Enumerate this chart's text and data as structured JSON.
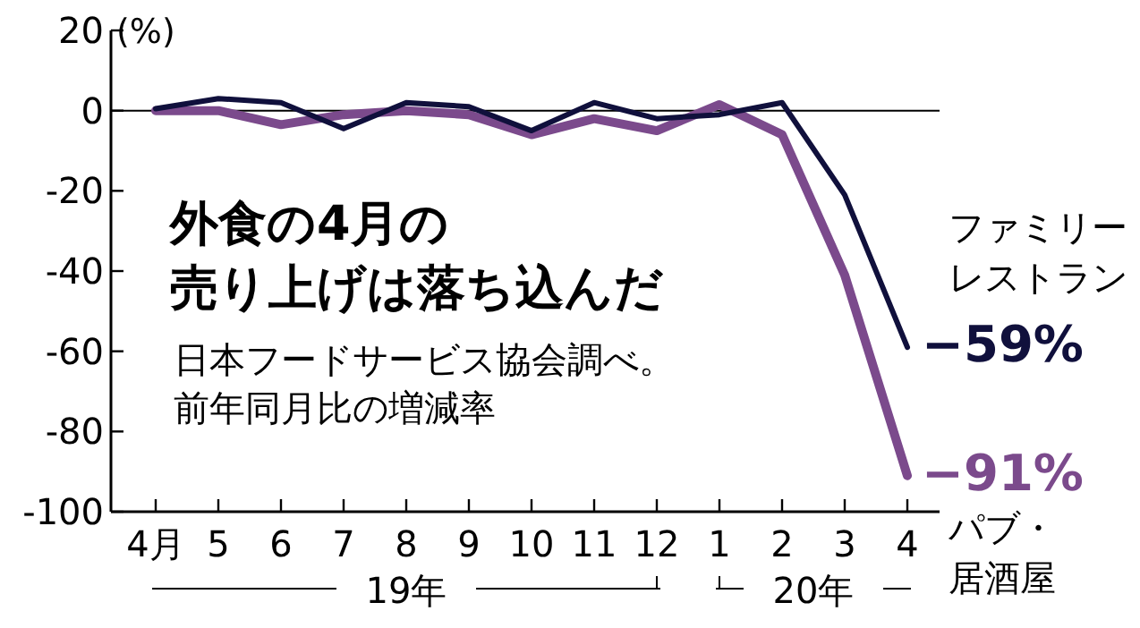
{
  "chart_data": {
    "type": "line",
    "title": "外食の4月の売り上げは落ち込んだ",
    "subtitle": "日本フードサービス協会調べ。前年同月比の増減率",
    "ylabel": "(%)",
    "categories": [
      "4月",
      "5",
      "6",
      "7",
      "8",
      "9",
      "10",
      "11",
      "12",
      "1",
      "2",
      "3",
      "4"
    ],
    "series": [
      {
        "name": "ファミリーレストラン",
        "color": "#10103c",
        "values": [
          0.5,
          3,
          2,
          -4.5,
          2,
          1,
          -5,
          2,
          -2,
          -1,
          2,
          -21,
          -59
        ],
        "value_labels": [
          null,
          null,
          null,
          null,
          null,
          null,
          null,
          null,
          null,
          null,
          null,
          null,
          "−59%"
        ]
      },
      {
        "name": "パブ・居酒屋",
        "color": "#7b4a8c",
        "values": [
          0,
          0,
          -3.5,
          -1,
          0,
          -1,
          -6,
          -2,
          -5,
          1.5,
          -6,
          -41,
          -91
        ],
        "value_labels": [
          null,
          null,
          null,
          null,
          null,
          null,
          null,
          null,
          null,
          null,
          null,
          null,
          "−91%"
        ]
      }
    ],
    "ylim": [
      -100,
      20
    ],
    "yticks": [
      20,
      0,
      -20,
      -40,
      -60,
      -80,
      -100
    ],
    "ref_lines": [
      {
        "axis": "y",
        "value": 0
      }
    ],
    "annotations": [
      "19年",
      "20年"
    ]
  }
}
